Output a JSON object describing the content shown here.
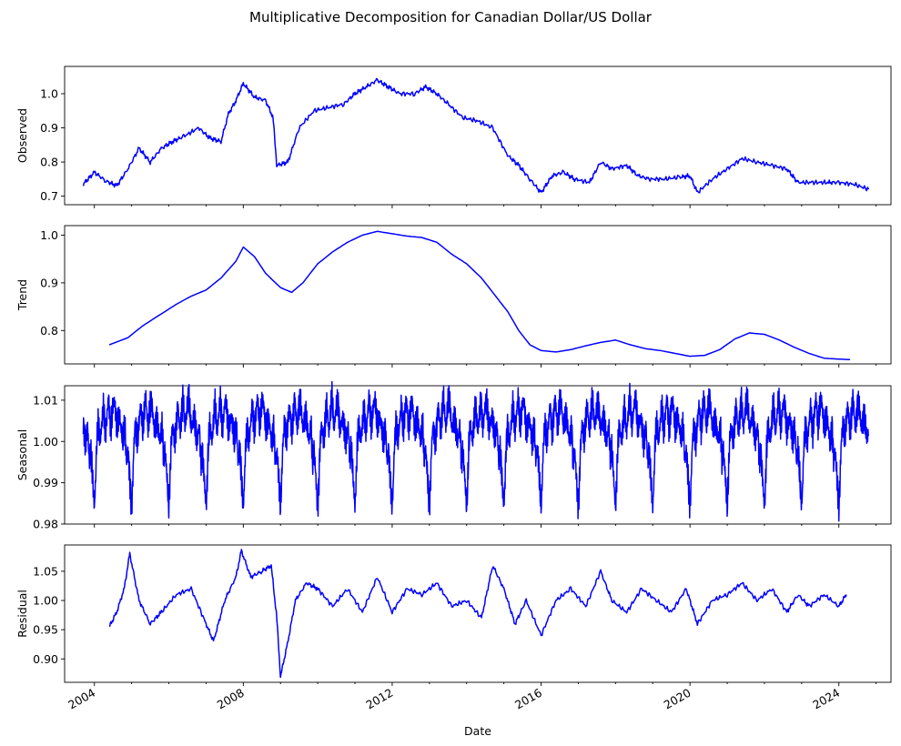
{
  "figure": {
    "title": "Multiplicative Decomposition for Canadian Dollar/US Dollar",
    "xlabel": "Date",
    "line_color": "#0000ff",
    "x_range": [
      2003.2,
      2025.4
    ],
    "x_ticks": [
      2004,
      2008,
      2012,
      2016,
      2020,
      2024
    ]
  },
  "chart_data": [
    {
      "type": "line",
      "ylabel": "Observed",
      "ylim": [
        0.675,
        1.08
      ],
      "yticks": [
        0.7,
        0.8,
        0.9,
        1.0
      ],
      "ytick_labels": [
        "0.7",
        "0.8",
        "0.9",
        "1.0"
      ],
      "x": [
        2003.7,
        2004.0,
        2004.3,
        2004.6,
        2004.9,
        2005.2,
        2005.5,
        2005.8,
        2006.1,
        2006.4,
        2006.8,
        2007.1,
        2007.4,
        2007.6,
        2007.8,
        2008.0,
        2008.3,
        2008.6,
        2008.8,
        2008.9,
        2009.2,
        2009.5,
        2009.9,
        2010.3,
        2010.7,
        2011.0,
        2011.3,
        2011.6,
        2011.9,
        2012.2,
        2012.6,
        2012.9,
        2013.2,
        2013.5,
        2013.9,
        2014.3,
        2014.7,
        2015.1,
        2015.4,
        2015.7,
        2016.0,
        2016.3,
        2016.6,
        2016.9,
        2017.3,
        2017.6,
        2017.9,
        2018.3,
        2018.6,
        2018.9,
        2019.3,
        2019.7,
        2020.0,
        2020.2,
        2020.6,
        2021.0,
        2021.4,
        2021.8,
        2022.2,
        2022.6,
        2022.9,
        2023.3,
        2023.7,
        2024.0,
        2024.4,
        2024.8
      ],
      "y": [
        0.735,
        0.77,
        0.745,
        0.73,
        0.78,
        0.84,
        0.8,
        0.84,
        0.86,
        0.875,
        0.9,
        0.87,
        0.86,
        0.94,
        0.98,
        1.03,
        0.99,
        0.98,
        0.93,
        0.79,
        0.8,
        0.9,
        0.95,
        0.96,
        0.97,
        1.0,
        1.02,
        1.04,
        1.02,
        1.0,
        1.0,
        1.02,
        1.0,
        0.97,
        0.93,
        0.92,
        0.9,
        0.82,
        0.79,
        0.75,
        0.71,
        0.76,
        0.77,
        0.75,
        0.74,
        0.8,
        0.78,
        0.79,
        0.76,
        0.75,
        0.75,
        0.755,
        0.76,
        0.71,
        0.75,
        0.78,
        0.81,
        0.8,
        0.79,
        0.78,
        0.74,
        0.74,
        0.74,
        0.74,
        0.735,
        0.72
      ]
    },
    {
      "type": "line",
      "ylabel": "Trend",
      "ylim": [
        0.73,
        1.02
      ],
      "yticks": [
        0.8,
        0.9,
        1.0
      ],
      "ytick_labels": [
        "0.8",
        "0.9",
        "1.0"
      ],
      "x": [
        2004.4,
        2004.9,
        2005.3,
        2005.8,
        2006.2,
        2006.6,
        2007.0,
        2007.4,
        2007.8,
        2008.0,
        2008.3,
        2008.6,
        2009.0,
        2009.3,
        2009.6,
        2010.0,
        2010.4,
        2010.8,
        2011.2,
        2011.6,
        2012.0,
        2012.4,
        2012.8,
        2013.2,
        2013.6,
        2014.0,
        2014.4,
        2014.8,
        2015.1,
        2015.4,
        2015.7,
        2016.0,
        2016.4,
        2016.8,
        2017.2,
        2017.6,
        2018.0,
        2018.4,
        2018.8,
        2019.2,
        2019.6,
        2020.0,
        2020.4,
        2020.8,
        2021.2,
        2021.6,
        2022.0,
        2022.4,
        2022.8,
        2023.2,
        2023.6,
        2024.0,
        2024.3
      ],
      "y": [
        0.77,
        0.785,
        0.81,
        0.835,
        0.855,
        0.872,
        0.885,
        0.91,
        0.945,
        0.975,
        0.955,
        0.92,
        0.89,
        0.88,
        0.9,
        0.94,
        0.965,
        0.985,
        1.0,
        1.008,
        1.003,
        0.998,
        0.995,
        0.985,
        0.96,
        0.94,
        0.91,
        0.87,
        0.84,
        0.8,
        0.77,
        0.758,
        0.755,
        0.76,
        0.768,
        0.775,
        0.78,
        0.77,
        0.762,
        0.758,
        0.752,
        0.746,
        0.748,
        0.76,
        0.782,
        0.795,
        0.792,
        0.78,
        0.765,
        0.752,
        0.742,
        0.74,
        0.739
      ]
    },
    {
      "type": "line",
      "ylabel": "Seasonal",
      "ylim": [
        0.98,
        1.0135
      ],
      "yticks": [
        0.98,
        0.99,
        1.0,
        1.01
      ],
      "ytick_labels": [
        "0.98",
        "0.99",
        "1.00",
        "1.01"
      ],
      "period_years": 1,
      "x_range": [
        2003.7,
        2024.8
      ],
      "one_cycle_by_year_fraction": {
        "t": [
          0.0,
          0.03,
          0.06,
          0.1,
          0.16,
          0.24,
          0.3,
          0.38,
          0.44,
          0.5,
          0.54,
          0.6,
          0.68,
          0.76,
          0.82,
          0.86,
          0.9,
          0.94,
          0.97,
          1.0
        ],
        "y": [
          0.984,
          0.99,
          0.999,
          1.004,
          1.0,
          1.009,
          1.002,
          1.011,
          1.003,
          1.009,
          1.01,
          1.003,
          1.006,
          1.0,
          1.004,
          0.995,
          0.998,
          0.993,
          0.988,
          0.984
        ]
      }
    },
    {
      "type": "line",
      "ylabel": "Residual",
      "ylim": [
        0.86,
        1.095
      ],
      "yticks": [
        0.9,
        0.95,
        1.0,
        1.05
      ],
      "ytick_labels": [
        "0.90",
        "0.95",
        "1.00",
        "1.05"
      ],
      "x": [
        2004.4,
        2004.6,
        2004.8,
        2004.95,
        2005.2,
        2005.5,
        2005.8,
        2006.2,
        2006.6,
        2007.0,
        2007.2,
        2007.5,
        2007.8,
        2007.95,
        2008.2,
        2008.5,
        2008.75,
        2008.9,
        2009.0,
        2009.2,
        2009.4,
        2009.7,
        2010.0,
        2010.4,
        2010.8,
        2011.2,
        2011.6,
        2012.0,
        2012.4,
        2012.8,
        2013.2,
        2013.6,
        2014.0,
        2014.4,
        2014.7,
        2015.0,
        2015.3,
        2015.6,
        2016.0,
        2016.4,
        2016.8,
        2017.2,
        2017.6,
        2017.9,
        2018.3,
        2018.7,
        2019.1,
        2019.5,
        2019.9,
        2020.2,
        2020.6,
        2021.0,
        2021.4,
        2021.8,
        2022.2,
        2022.6,
        2022.9,
        2023.2,
        2023.6,
        2024.0,
        2024.2
      ],
      "y": [
        0.955,
        0.98,
        1.02,
        1.08,
        1.0,
        0.96,
        0.98,
        1.01,
        1.02,
        0.96,
        0.93,
        1.0,
        1.04,
        1.085,
        1.04,
        1.05,
        1.06,
        0.97,
        0.87,
        0.93,
        1.0,
        1.03,
        1.02,
        0.99,
        1.02,
        0.98,
        1.04,
        0.98,
        1.02,
        1.01,
        1.03,
        0.99,
        1.0,
        0.97,
        1.06,
        1.02,
        0.96,
        1.0,
        0.94,
        1.0,
        1.02,
        0.99,
        1.05,
        1.0,
        0.98,
        1.02,
        1.0,
        0.98,
        1.02,
        0.96,
        1.0,
        1.01,
        1.03,
        1.0,
        1.02,
        0.98,
        1.01,
        0.99,
        1.01,
        0.99,
        1.01
      ]
    }
  ]
}
